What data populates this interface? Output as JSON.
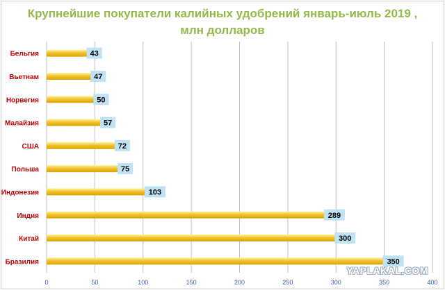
{
  "chart_data": {
    "type": "bar",
    "orientation": "horizontal",
    "title_line1": "Крупнейшие покупатели калийных удобрений январь-июль 2019 ,",
    "title_line2": "млн долларов",
    "categories": [
      "Бельгия",
      "Вьетнам",
      "Норвегия",
      "Малайзия",
      "США",
      "Польша",
      "Индонезия",
      "Индия",
      "Китай",
      "Бразилия"
    ],
    "values": [
      43,
      47,
      50,
      57,
      72,
      75,
      103,
      289,
      300,
      350
    ],
    "xlim": [
      0,
      400
    ],
    "xticks": [
      0,
      50,
      100,
      150,
      200,
      250,
      300,
      350,
      400
    ],
    "grid": true,
    "colors": {
      "title": "#94b94a",
      "category_label": "#c00000",
      "bar_top": "#fff3a0",
      "bar_mid": "#f2c12e",
      "bar_bottom": "#d9a400",
      "label_bg": "#bfe3f5",
      "tick_label": "#3b5f9e",
      "grid": "#bfbfbf"
    }
  },
  "watermark": "YAPLAKAL.COM"
}
